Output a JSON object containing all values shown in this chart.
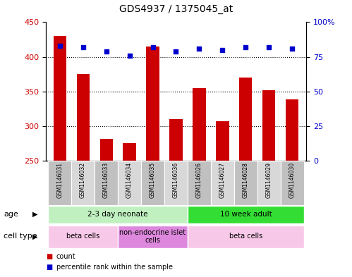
{
  "title": "GDS4937 / 1375045_at",
  "samples": [
    "GSM1146031",
    "GSM1146032",
    "GSM1146033",
    "GSM1146034",
    "GSM1146035",
    "GSM1146036",
    "GSM1146026",
    "GSM1146027",
    "GSM1146028",
    "GSM1146029",
    "GSM1146030"
  ],
  "counts": [
    430,
    375,
    281,
    275,
    415,
    310,
    355,
    307,
    370,
    352,
    338
  ],
  "percentiles": [
    83,
    82,
    79,
    76,
    82,
    79,
    81,
    80,
    82,
    82,
    81
  ],
  "ylim_left": [
    250,
    450
  ],
  "ylim_right": [
    0,
    100
  ],
  "yticks_left": [
    250,
    300,
    350,
    400,
    450
  ],
  "yticks_right": [
    0,
    25,
    50,
    75,
    100
  ],
  "ytick_right_labels": [
    "0",
    "25",
    "50",
    "75",
    "100%"
  ],
  "bar_color": "#cc0000",
  "dot_color": "#0000cc",
  "grid_lines": [
    300,
    350,
    400
  ],
  "age_groups": [
    {
      "label": "2-3 day neonate",
      "start": 0,
      "end": 6,
      "color": "#c0f0c0"
    },
    {
      "label": "10 week adult",
      "start": 6,
      "end": 11,
      "color": "#33dd33"
    }
  ],
  "cell_types": [
    {
      "label": "beta cells",
      "start": 0,
      "end": 3,
      "color": "#f8c8e8"
    },
    {
      "label": "non-endocrine islet\ncells",
      "start": 3,
      "end": 6,
      "color": "#dd88dd"
    },
    {
      "label": "beta cells",
      "start": 6,
      "end": 11,
      "color": "#f8c8e8"
    }
  ],
  "sample_box_color": "#c8c8c8",
  "sample_box_edge": "#ffffff"
}
